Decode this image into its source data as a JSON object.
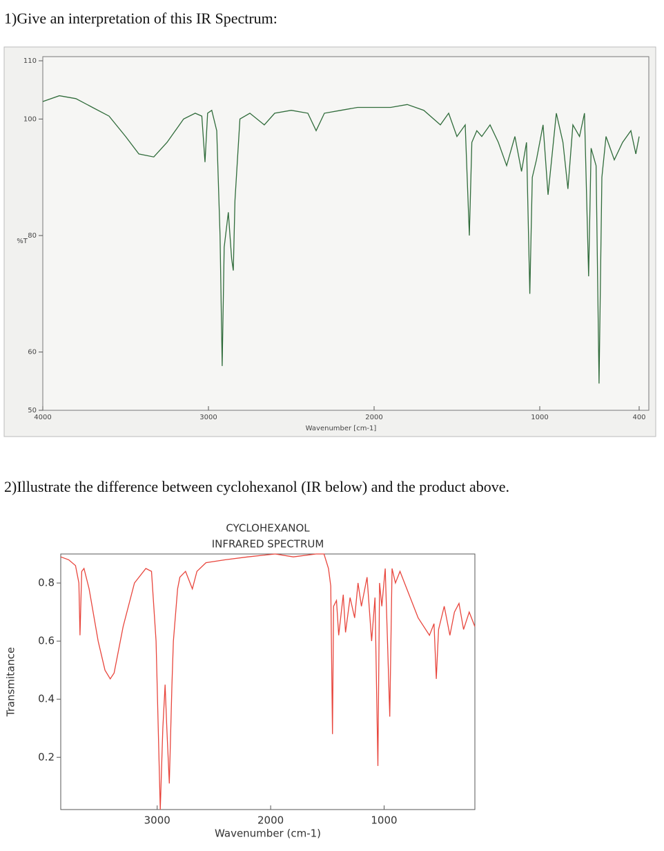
{
  "questions": [
    "1)Give an interpretation of this IR Spectrum:",
    "2)Illustrate the difference between cyclohexanol (IR below) and the product above."
  ],
  "chart_data": [
    {
      "type": "line",
      "xlabel": "Wavenumber [cm-1]",
      "ylabel": "%T",
      "color": "#2f6b3a",
      "xlim": [
        4000,
        400
      ],
      "ylim": [
        50,
        110
      ],
      "xticks": [
        4000,
        3000,
        2000,
        1000,
        400
      ],
      "yticks": [
        50,
        60,
        80,
        100,
        110
      ],
      "x": [
        4000,
        3900,
        3800,
        3700,
        3600,
        3500,
        3420,
        3330,
        3250,
        3150,
        3080,
        3040,
        3021,
        3005,
        2980,
        2950,
        2930,
        2917,
        2905,
        2880,
        2860,
        2850,
        2840,
        2810,
        2750,
        2663,
        2600,
        2500,
        2400,
        2350,
        2300,
        2200,
        2100,
        2000,
        1900,
        1800,
        1700,
        1600,
        1550,
        1500,
        1450,
        1425,
        1410,
        1380,
        1350,
        1300,
        1250,
        1200,
        1150,
        1110,
        1080,
        1060,
        1045,
        1020,
        980,
        950,
        900,
        860,
        830,
        800,
        760,
        730,
        705,
        690,
        660,
        642,
        625,
        600,
        550,
        500,
        450,
        420,
        400
      ],
      "values": [
        103,
        104,
        103.5,
        102,
        100.5,
        97,
        94,
        93.5,
        96,
        100,
        101,
        100.5,
        92.6,
        101,
        101.5,
        98,
        80,
        57.6,
        78,
        84,
        76,
        74,
        86,
        100,
        101,
        99,
        101,
        101.5,
        101,
        98,
        101,
        101.5,
        102,
        102,
        102,
        102.5,
        101.5,
        99,
        101,
        97,
        99,
        80,
        96,
        98,
        97,
        99,
        96,
        92,
        97,
        91,
        96,
        70,
        90,
        93,
        99,
        87,
        101,
        96,
        88,
        99,
        97,
        101,
        73,
        95,
        92,
        54.6,
        90,
        97,
        93,
        96,
        98,
        94,
        97
      ]
    },
    {
      "type": "line",
      "title": "CYCLOHEXANOL",
      "subtitle": "INFRARED SPECTRUM",
      "xlabel": "Wavenumber (cm-1)",
      "ylabel": "Transmitance",
      "color": "#e8453c",
      "xlim": [
        3850,
        200
      ],
      "ylim": [
        0.02,
        0.9
      ],
      "xticks": [
        3000,
        2000,
        1000
      ],
      "yticks": [
        0.2,
        0.4,
        0.6,
        0.8
      ],
      "x": [
        3850,
        3780,
        3720,
        3690,
        3680,
        3665,
        3645,
        3600,
        3520,
        3460,
        3414,
        3380,
        3300,
        3200,
        3100,
        3050,
        3010,
        2973,
        2950,
        2930,
        2915,
        2893,
        2870,
        2857,
        2820,
        2800,
        2750,
        2690,
        2650,
        2570,
        2400,
        2200,
        1960,
        1800,
        1600,
        1530,
        1490,
        1470,
        1455,
        1445,
        1420,
        1400,
        1360,
        1340,
        1300,
        1260,
        1230,
        1200,
        1150,
        1110,
        1080,
        1055,
        1040,
        1020,
        990,
        970,
        950,
        930,
        900,
        860,
        800,
        700,
        600,
        560,
        540,
        520,
        470,
        420,
        380,
        340,
        300,
        250,
        200
      ],
      "values": [
        0.89,
        0.88,
        0.86,
        0.8,
        0.62,
        0.84,
        0.85,
        0.78,
        0.6,
        0.5,
        0.47,
        0.49,
        0.65,
        0.8,
        0.85,
        0.84,
        0.6,
        0.02,
        0.3,
        0.45,
        0.3,
        0.11,
        0.45,
        0.6,
        0.78,
        0.82,
        0.84,
        0.78,
        0.84,
        0.87,
        0.88,
        0.89,
        0.9,
        0.89,
        0.9,
        0.9,
        0.85,
        0.79,
        0.28,
        0.72,
        0.74,
        0.62,
        0.76,
        0.63,
        0.75,
        0.68,
        0.8,
        0.72,
        0.82,
        0.6,
        0.75,
        0.17,
        0.8,
        0.72,
        0.85,
        0.6,
        0.34,
        0.85,
        0.8,
        0.84,
        0.78,
        0.68,
        0.62,
        0.66,
        0.47,
        0.64,
        0.72,
        0.62,
        0.7,
        0.73,
        0.64,
        0.7,
        0.65
      ]
    }
  ]
}
